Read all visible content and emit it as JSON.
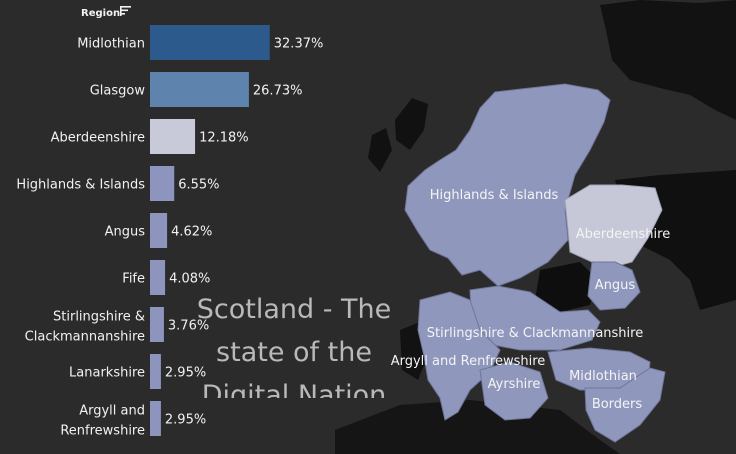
{
  "header": {
    "label": "Region"
  },
  "colors": {
    "background": "#2b2b2b",
    "bar_dark": "#2d5a8c",
    "bar_mid": "#5e84ad",
    "bar_light": "#c8cad9",
    "bar_default": "#8d95be",
    "map_region": "#8f97bd"
  },
  "overlay_title": "Scotland - The state of the Digital Nation",
  "chart_data": {
    "type": "bar",
    "orientation": "horizontal",
    "categories": [
      "Midlothian",
      "Glasgow",
      "Aberdeenshire",
      "Highlands & Islands",
      "Angus",
      "Fife",
      "Stirlingshire & Clackmannanshire",
      "Lanarkshire",
      "Argyll and Renfrewshire"
    ],
    "category_lines": [
      [
        "Midlothian"
      ],
      [
        "Glasgow"
      ],
      [
        "Aberdeenshire"
      ],
      [
        "Highlands & Islands"
      ],
      [
        "Angus"
      ],
      [
        "Fife"
      ],
      [
        "Stirlingshire &",
        "Clackmannanshire"
      ],
      [
        "Lanarkshire"
      ],
      [
        "Argyll and",
        "Renfrewshire"
      ]
    ],
    "values": [
      32.37,
      26.73,
      12.18,
      6.55,
      4.62,
      4.08,
      3.76,
      2.95,
      2.95
    ],
    "value_labels": [
      "32.37%",
      "26.73%",
      "12.18%",
      "6.55%",
      "4.62%",
      "4.08%",
      "3.76%",
      "2.95%",
      "2.95%"
    ],
    "bar_colors": [
      "#2d5a8c",
      "#5e84ad",
      "#c8cad9",
      "#8d95be",
      "#8d95be",
      "#8d95be",
      "#8d95be",
      "#8d95be",
      "#8d95be"
    ],
    "xlim": [
      0,
      40
    ],
    "title": "",
    "xlabel": "",
    "ylabel": "Region"
  },
  "map": {
    "labels": [
      "Highlands & Islands",
      "Aberdeenshire",
      "Angus",
      "Stirlingshire & Clackmannanshire",
      "Argyll and Renfrewshire",
      "Midlothian",
      "Ayrshire",
      "Borders"
    ]
  }
}
